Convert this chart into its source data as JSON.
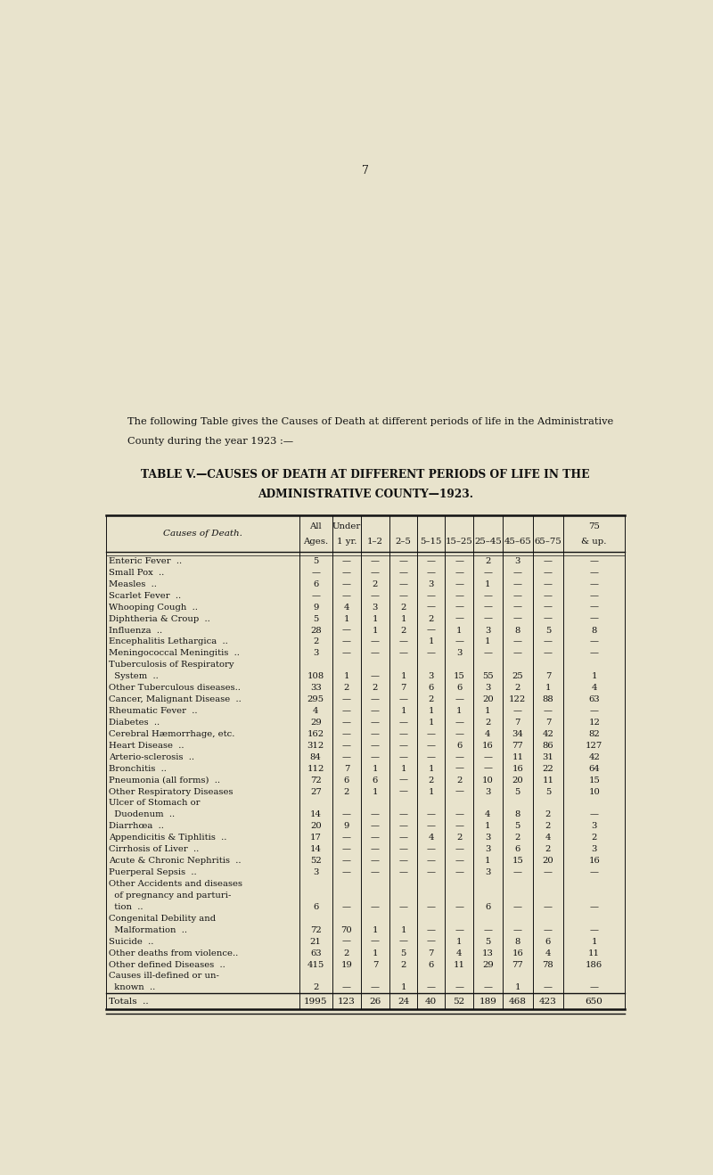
{
  "page_number": "7",
  "intro_text_line1": "The following Table gives the Causes of Death at different periods of life in the Administrative",
  "intro_text_line2": "County during the year 1923 :—",
  "title_line1": "TABLE V.—CAUSES OF DEATH AT DIFFERENT PERIODS OF LIFE IN THE",
  "title_line2": "ADMINISTRATIVE COUNTY—1923.",
  "col_headers_row1": [
    "",
    "All",
    "Under",
    "",
    "",
    "",
    "",
    "",
    "",
    "",
    "75"
  ],
  "col_headers_row2": [
    "Causes of Death.",
    "Ages.",
    "1 yr.",
    "1–2",
    "2–5",
    "5–15",
    "15–25",
    "25–45",
    "45–65",
    "65–75",
    "& up."
  ],
  "rows": [
    [
      "Enteric Fever  ..",
      "5",
      "—",
      "—",
      "—",
      "—",
      "—",
      "2",
      "3",
      "—",
      "—"
    ],
    [
      "Small Pox  ..",
      "—",
      "—",
      "—",
      "—",
      "—",
      "—",
      "—",
      "—",
      "—",
      "—"
    ],
    [
      "Measles  ..",
      "6",
      "—",
      "2",
      "—",
      "3",
      "—",
      "1",
      "—",
      "—",
      "—"
    ],
    [
      "Scarlet Fever  ..",
      "—",
      "—",
      "—",
      "—",
      "—",
      "—",
      "—",
      "—",
      "—",
      "—"
    ],
    [
      "Whooping Cough  ..",
      "9",
      "4",
      "3",
      "2",
      "—",
      "—",
      "—",
      "—",
      "—",
      "—"
    ],
    [
      "Diphtheria & Croup  ..",
      "5",
      "1",
      "1",
      "1",
      "2",
      "—",
      "—",
      "—",
      "—",
      "—"
    ],
    [
      "Influenza  ..",
      "28",
      "—",
      "1",
      "2",
      "—",
      "1",
      "3",
      "8",
      "5",
      "8"
    ],
    [
      "Encephalitis Lethargica  ..",
      "2",
      "—",
      "—",
      "—",
      "1",
      "—",
      "1",
      "—",
      "—",
      "—"
    ],
    [
      "Meningococcal Meningitis  ..",
      "3",
      "—",
      "—",
      "—",
      "—",
      "3",
      "—",
      "—",
      "—",
      "—"
    ],
    [
      "Tuberculosis of Respiratory",
      "",
      "",
      "",
      "",
      "",
      "",
      "",
      "",
      "",
      ""
    ],
    [
      "  System  ..",
      "108",
      "1",
      "—",
      "1",
      "3",
      "15",
      "55",
      "25",
      "7",
      "1"
    ],
    [
      "Other Tuberculous diseases..",
      "33",
      "2",
      "2",
      "7",
      "6",
      "6",
      "3",
      "2",
      "1",
      "4"
    ],
    [
      "Cancer, Malignant Disease  ..",
      "295",
      "—",
      "—",
      "—",
      "2",
      "—",
      "20",
      "122",
      "88",
      "63"
    ],
    [
      "Rheumatic Fever  ..",
      "4",
      "—",
      "—",
      "1",
      "1",
      "1",
      "1",
      "—",
      "—",
      "—"
    ],
    [
      "Diabetes  ..",
      "29",
      "—",
      "—",
      "—",
      "1",
      "—",
      "2",
      "7",
      "7",
      "12"
    ],
    [
      "Cerebral Hæmorrhage, etc.",
      "162",
      "—",
      "—",
      "—",
      "—",
      "—",
      "4",
      "34",
      "42",
      "82"
    ],
    [
      "Heart Disease  ..",
      "312",
      "—",
      "—",
      "—",
      "—",
      "6",
      "16",
      "77",
      "86",
      "127"
    ],
    [
      "Arterio-sclerosis  ..",
      "84",
      "—",
      "—",
      "—",
      "—",
      "—",
      "—",
      "11",
      "31",
      "42"
    ],
    [
      "Bronchitis  ..",
      "112",
      "7",
      "1",
      "1",
      "1",
      "—",
      "—",
      "16",
      "22",
      "64"
    ],
    [
      "Pneumonia (all forms)  ..",
      "72",
      "6",
      "6",
      "—",
      "2",
      "2",
      "10",
      "20",
      "11",
      "15"
    ],
    [
      "Other Respiratory Diseases",
      "27",
      "2",
      "1",
      "—",
      "1",
      "—",
      "3",
      "5",
      "5",
      "10"
    ],
    [
      "Ulcer of Stomach or",
      "",
      "",
      "",
      "",
      "",
      "",
      "",
      "",
      "",
      ""
    ],
    [
      "  Duodenum  ..",
      "14",
      "—",
      "—",
      "—",
      "—",
      "—",
      "4",
      "8",
      "2",
      "—"
    ],
    [
      "Diarrhœa  ..",
      "20",
      "9",
      "—",
      "—",
      "—",
      "—",
      "1",
      "5",
      "2",
      "3"
    ],
    [
      "Appendicitis & Tiphlitis  ..",
      "17",
      "—",
      "—",
      "—",
      "4",
      "2",
      "3",
      "2",
      "4",
      "2"
    ],
    [
      "Cirrhosis of Liver  ..",
      "14",
      "—",
      "—",
      "—",
      "—",
      "—",
      "3",
      "6",
      "2",
      "3"
    ],
    [
      "Acute & Chronic Nephritis  ..",
      "52",
      "—",
      "—",
      "—",
      "—",
      "—",
      "1",
      "15",
      "20",
      "16"
    ],
    [
      "Puerperal Sepsis  ..",
      "3",
      "—",
      "—",
      "—",
      "—",
      "—",
      "3",
      "—",
      "—",
      "—"
    ],
    [
      "Other Accidents and diseases",
      "",
      "",
      "",
      "",
      "",
      "",
      "",
      "",
      "",
      ""
    ],
    [
      "  of pregnancy and parturi-",
      "",
      "",
      "",
      "",
      "",
      "",
      "",
      "",
      "",
      ""
    ],
    [
      "  tion  ..",
      "6",
      "—",
      "—",
      "—",
      "—",
      "—",
      "6",
      "—",
      "—",
      "—"
    ],
    [
      "Congenital Debility and",
      "",
      "",
      "",
      "",
      "",
      "",
      "",
      "",
      "",
      ""
    ],
    [
      "  Malformation  ..",
      "72",
      "70",
      "1",
      "1",
      "—",
      "—",
      "—",
      "—",
      "—",
      "—"
    ],
    [
      "Suicide  ..",
      "21",
      "—",
      "—",
      "—",
      "—",
      "1",
      "5",
      "8",
      "6",
      "1"
    ],
    [
      "Other deaths from violence..",
      "63",
      "2",
      "1",
      "5",
      "7",
      "4",
      "13",
      "16",
      "4",
      "11"
    ],
    [
      "Other defined Diseases  ..",
      "415",
      "19",
      "7",
      "2",
      "6",
      "11",
      "29",
      "77",
      "78",
      "186"
    ],
    [
      "Causes ill-defined or un-",
      "",
      "",
      "",
      "",
      "",
      "",
      "",
      "",
      "",
      ""
    ],
    [
      "  known  ..",
      "2",
      "—",
      "—",
      "1",
      "—",
      "—",
      "—",
      "1",
      "—",
      "—"
    ]
  ],
  "totals_row": [
    "Totals  ..",
    "1995",
    "123",
    "26",
    "24",
    "40",
    "52",
    "189",
    "468",
    "423",
    "650"
  ],
  "bg_color": "#e8e3cc",
  "text_color": "#111111",
  "line_color": "#111111"
}
